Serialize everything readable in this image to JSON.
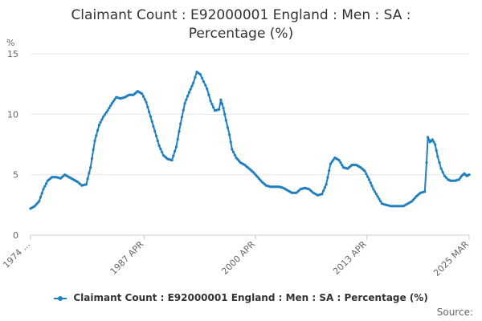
{
  "title_line1": "Claimant Count : E92000001 England : Men : SA :",
  "title_line2": "Percentage (%)",
  "source_label": "Source:",
  "colors": {
    "series": "#1f7fbf",
    "grid": "#e6e6e6",
    "axis": "#cccccc",
    "text": "#666666"
  },
  "chart_data": {
    "type": "line",
    "title": "Claimant Count : E92000001 England : Men : SA : Percentage (%)",
    "ylabel": "%",
    "xlabel": "",
    "ylim": [
      0,
      15
    ],
    "yticks": [
      0,
      5,
      10,
      15
    ],
    "xlim": [
      1974.0,
      2025.17
    ],
    "xticks": [
      {
        "label": "1974 ...",
        "x": 1974.0
      },
      {
        "label": "1987 APR",
        "x": 1987.25
      },
      {
        "label": "2000 APR",
        "x": 2000.25
      },
      {
        "label": "2013 APR",
        "x": 2013.25
      },
      {
        "label": "2025 MAR",
        "x": 2025.17
      }
    ],
    "grid": true,
    "legend": "bottom",
    "series": [
      {
        "name": "Claimant Count : E92000001 England : Men : SA : Percentage (%)",
        "points": [
          [
            1974.0,
            2.2
          ],
          [
            1974.5,
            2.4
          ],
          [
            1975.0,
            2.8
          ],
          [
            1975.5,
            3.8
          ],
          [
            1976.0,
            4.5
          ],
          [
            1976.5,
            4.8
          ],
          [
            1977.0,
            4.8
          ],
          [
            1977.5,
            4.7
          ],
          [
            1978.0,
            5.0
          ],
          [
            1978.5,
            4.8
          ],
          [
            1979.0,
            4.6
          ],
          [
            1979.5,
            4.4
          ],
          [
            1980.0,
            4.1
          ],
          [
            1980.5,
            4.2
          ],
          [
            1981.0,
            5.6
          ],
          [
            1981.5,
            7.8
          ],
          [
            1982.0,
            9.1
          ],
          [
            1982.5,
            9.8
          ],
          [
            1983.0,
            10.3
          ],
          [
            1983.5,
            10.9
          ],
          [
            1984.0,
            11.4
          ],
          [
            1984.5,
            11.3
          ],
          [
            1985.0,
            11.4
          ],
          [
            1985.5,
            11.6
          ],
          [
            1986.0,
            11.6
          ],
          [
            1986.5,
            11.9
          ],
          [
            1987.0,
            11.7
          ],
          [
            1987.5,
            11.0
          ],
          [
            1988.0,
            9.8
          ],
          [
            1988.5,
            8.6
          ],
          [
            1989.0,
            7.4
          ],
          [
            1989.5,
            6.6
          ],
          [
            1990.0,
            6.3
          ],
          [
            1990.5,
            6.2
          ],
          [
            1991.0,
            7.3
          ],
          [
            1991.5,
            9.2
          ],
          [
            1992.0,
            10.9
          ],
          [
            1992.5,
            11.8
          ],
          [
            1993.0,
            12.6
          ],
          [
            1993.4,
            13.5
          ],
          [
            1993.8,
            13.3
          ],
          [
            1994.2,
            12.7
          ],
          [
            1994.6,
            12.1
          ],
          [
            1995.0,
            11.1
          ],
          [
            1995.5,
            10.3
          ],
          [
            1996.0,
            10.4
          ],
          [
            1996.2,
            11.2
          ],
          [
            1996.5,
            10.5
          ],
          [
            1996.8,
            9.5
          ],
          [
            1997.2,
            8.3
          ],
          [
            1997.5,
            7.1
          ],
          [
            1998.0,
            6.4
          ],
          [
            1998.5,
            6.0
          ],
          [
            1999.0,
            5.8
          ],
          [
            1999.5,
            5.5
          ],
          [
            2000.0,
            5.2
          ],
          [
            2000.5,
            4.8
          ],
          [
            2001.0,
            4.4
          ],
          [
            2001.5,
            4.1
          ],
          [
            2002.0,
            4.0
          ],
          [
            2002.5,
            4.0
          ],
          [
            2003.0,
            4.0
          ],
          [
            2003.5,
            3.9
          ],
          [
            2004.0,
            3.7
          ],
          [
            2004.5,
            3.5
          ],
          [
            2005.0,
            3.5
          ],
          [
            2005.5,
            3.8
          ],
          [
            2006.0,
            3.9
          ],
          [
            2006.5,
            3.8
          ],
          [
            2007.0,
            3.5
          ],
          [
            2007.5,
            3.3
          ],
          [
            2008.0,
            3.4
          ],
          [
            2008.5,
            4.2
          ],
          [
            2009.0,
            5.9
          ],
          [
            2009.5,
            6.4
          ],
          [
            2010.0,
            6.2
          ],
          [
            2010.5,
            5.6
          ],
          [
            2011.0,
            5.5
          ],
          [
            2011.5,
            5.8
          ],
          [
            2012.0,
            5.8
          ],
          [
            2012.5,
            5.6
          ],
          [
            2013.0,
            5.3
          ],
          [
            2013.5,
            4.6
          ],
          [
            2014.0,
            3.8
          ],
          [
            2014.5,
            3.2
          ],
          [
            2015.0,
            2.6
          ],
          [
            2015.5,
            2.5
          ],
          [
            2016.0,
            2.4
          ],
          [
            2016.5,
            2.4
          ],
          [
            2017.0,
            2.4
          ],
          [
            2017.5,
            2.4
          ],
          [
            2018.0,
            2.6
          ],
          [
            2018.5,
            2.8
          ],
          [
            2019.0,
            3.2
          ],
          [
            2019.5,
            3.5
          ],
          [
            2020.0,
            3.6
          ],
          [
            2020.2,
            6.0
          ],
          [
            2020.35,
            8.1
          ],
          [
            2020.6,
            7.7
          ],
          [
            2020.9,
            7.9
          ],
          [
            2021.2,
            7.5
          ],
          [
            2021.5,
            6.5
          ],
          [
            2021.9,
            5.5
          ],
          [
            2022.3,
            4.9
          ],
          [
            2022.7,
            4.6
          ],
          [
            2023.0,
            4.5
          ],
          [
            2023.5,
            4.5
          ],
          [
            2024.0,
            4.6
          ],
          [
            2024.3,
            4.9
          ],
          [
            2024.6,
            5.1
          ],
          [
            2024.9,
            4.9
          ],
          [
            2025.17,
            5.0
          ]
        ]
      }
    ]
  }
}
